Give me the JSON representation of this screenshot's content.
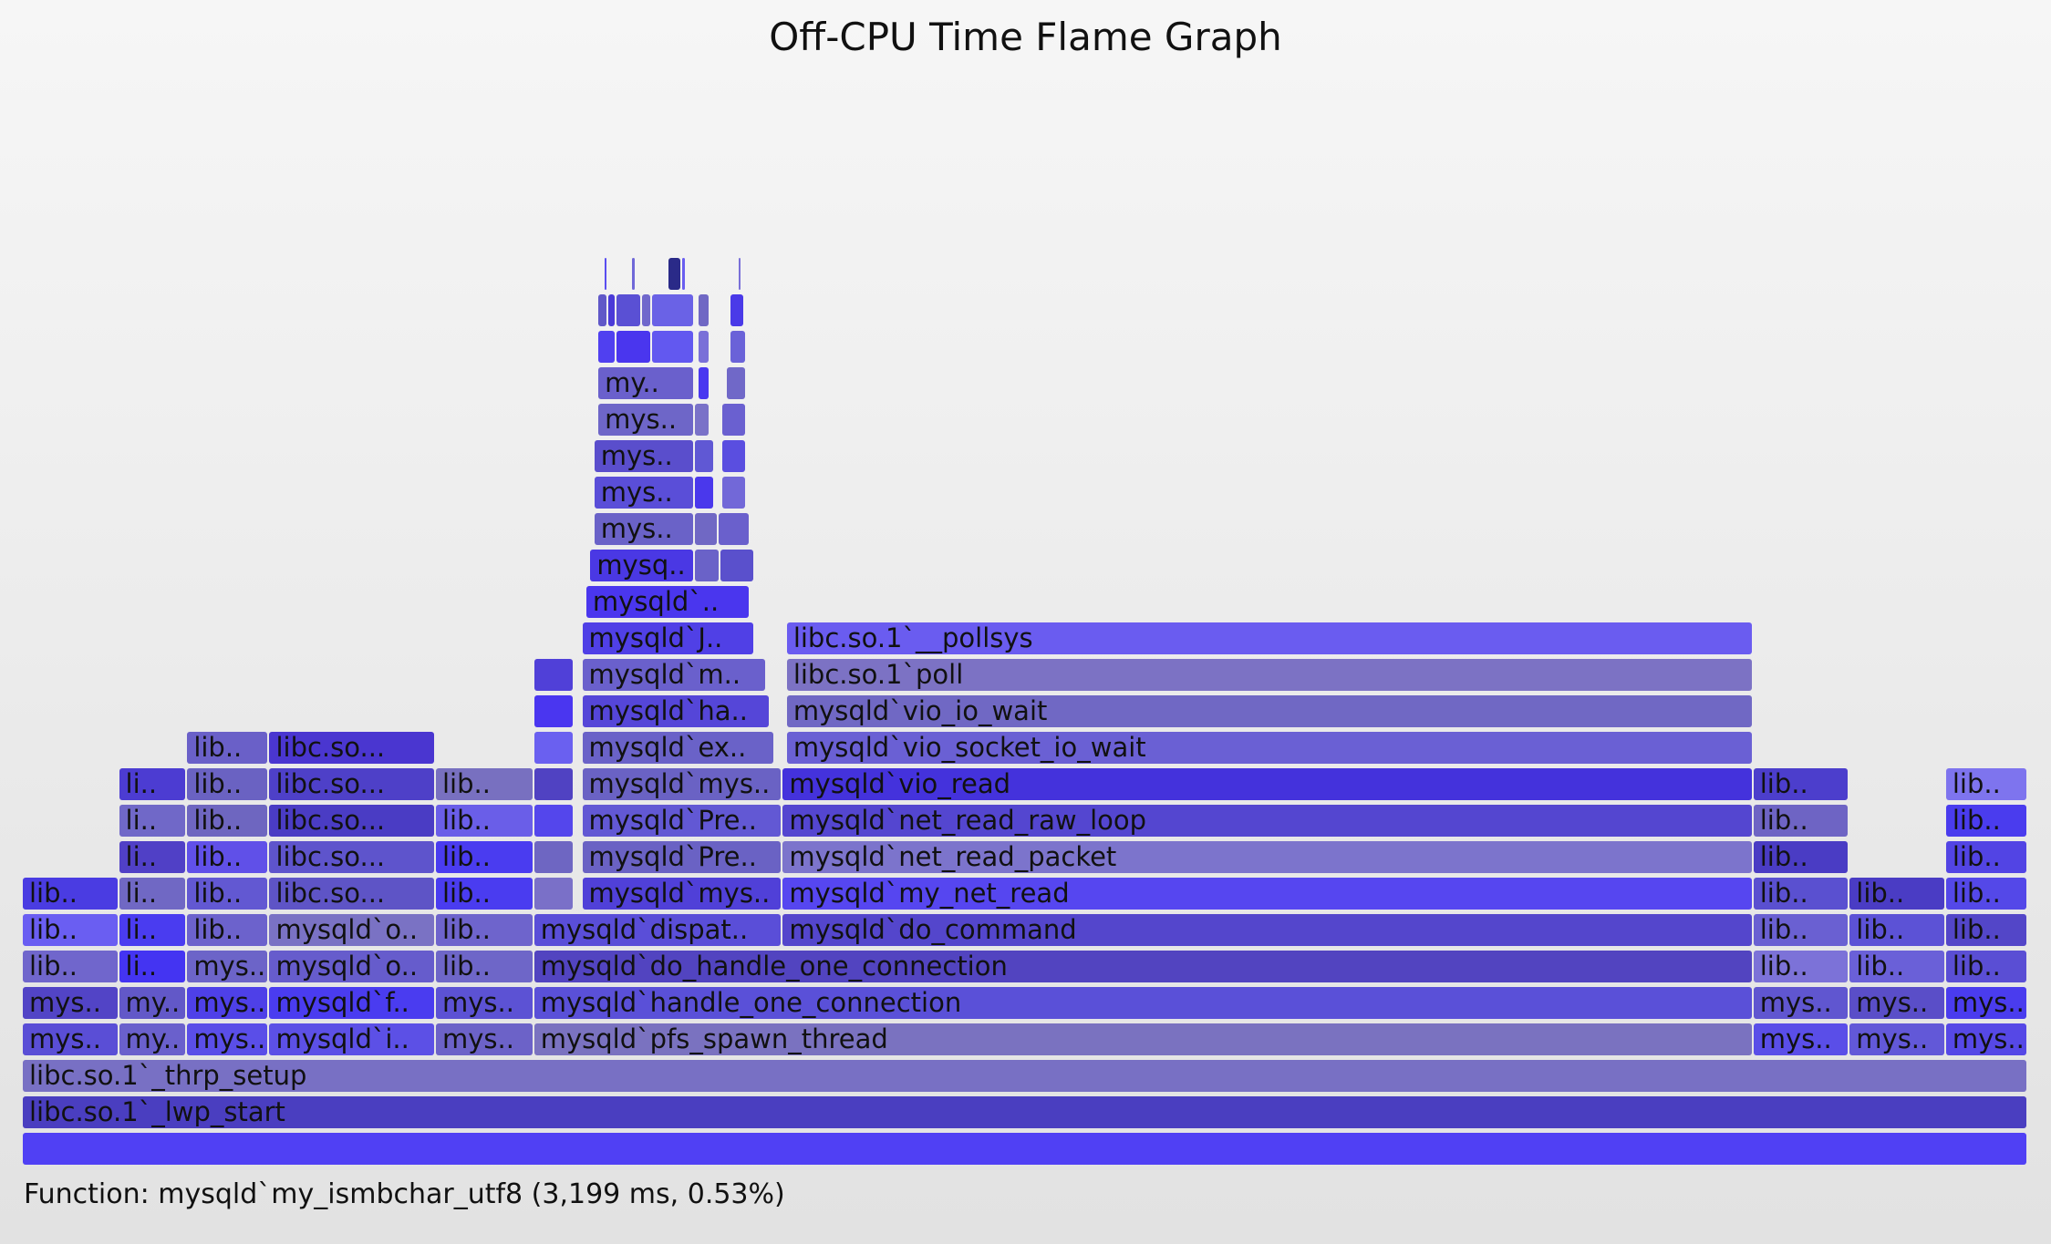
{
  "title": "Off-CPU Time Flame Graph",
  "footer": {
    "prefix": "Function: ",
    "function": "mysqld`my_ismbchar_utf8",
    "detail": " (3,199 ms, 0.53%)"
  },
  "chart_data": {
    "type": "flame",
    "title": "Off-CPU Time Flame Graph",
    "x_unit": "fraction of total off-CPU time",
    "frames": [
      {
        "label": "",
        "depth": 0,
        "x0": 0.0,
        "x1": 1.0,
        "color": "#5040f4"
      },
      {
        "label": "libc.so.1`_lwp_start",
        "depth": 1,
        "x0": 0.0,
        "x1": 1.0,
        "color": "#4a3ec0"
      },
      {
        "label": "libc.so.1`_thrp_setup",
        "depth": 2,
        "x0": 0.0,
        "x1": 1.0,
        "color": "#7870c4"
      },
      {
        "label": "mys..",
        "depth": 3,
        "x0": 0.0,
        "x1": 0.048,
        "color": "#5a4ed6"
      },
      {
        "label": "my..",
        "depth": 3,
        "x0": 0.048,
        "x1": 0.082,
        "color": "#6a60cc"
      },
      {
        "label": "mys..",
        "depth": 3,
        "x0": 0.082,
        "x1": 0.123,
        "color": "#5a4ee8"
      },
      {
        "label": "mysqld`i..",
        "depth": 3,
        "x0": 0.123,
        "x1": 0.206,
        "color": "#5c50e6"
      },
      {
        "label": "mys..",
        "depth": 3,
        "x0": 0.206,
        "x1": 0.255,
        "color": "#6c62c8"
      },
      {
        "label": "mysqld`pfs_spawn_thread",
        "depth": 3,
        "x0": 0.255,
        "x1": 0.863,
        "color": "#7a72c0"
      },
      {
        "label": "mys..",
        "depth": 3,
        "x0": 0.863,
        "x1": 0.911,
        "color": "#5a4ee8"
      },
      {
        "label": "mys..",
        "depth": 3,
        "x0": 0.911,
        "x1": 0.959,
        "color": "#6258d8"
      },
      {
        "label": "mys..",
        "depth": 3,
        "x0": 0.959,
        "x1": 1.0,
        "color": "#5648e6"
      },
      {
        "label": "mys..",
        "depth": 4,
        "x0": 0.0,
        "x1": 0.048,
        "color": "#5244c6"
      },
      {
        "label": "my..",
        "depth": 4,
        "x0": 0.048,
        "x1": 0.082,
        "color": "#6258c8"
      },
      {
        "label": "mys..",
        "depth": 4,
        "x0": 0.082,
        "x1": 0.123,
        "color": "#4e40e8"
      },
      {
        "label": "mysqld`f..",
        "depth": 4,
        "x0": 0.123,
        "x1": 0.206,
        "color": "#4a3cf0"
      },
      {
        "label": "mys..",
        "depth": 4,
        "x0": 0.206,
        "x1": 0.255,
        "color": "#5c52d4"
      },
      {
        "label": "mysqld`handle_one_connection",
        "depth": 4,
        "x0": 0.255,
        "x1": 0.863,
        "color": "#5a50d8"
      },
      {
        "label": "mys..",
        "depth": 4,
        "x0": 0.863,
        "x1": 0.911,
        "color": "#6056d0"
      },
      {
        "label": "mys..",
        "depth": 4,
        "x0": 0.911,
        "x1": 0.959,
        "color": "#5a4ec8"
      },
      {
        "label": "mys..",
        "depth": 4,
        "x0": 0.959,
        "x1": 1.0,
        "color": "#4a3cee"
      },
      {
        "label": "lib..",
        "depth": 5,
        "x0": 0.0,
        "x1": 0.048,
        "color": "#7066cc"
      },
      {
        "label": "li..",
        "depth": 5,
        "x0": 0.048,
        "x1": 0.082,
        "color": "#4434f2"
      },
      {
        "label": "mys..",
        "depth": 5,
        "x0": 0.082,
        "x1": 0.123,
        "color": "#6c64c8"
      },
      {
        "label": "mysqld`o..",
        "depth": 5,
        "x0": 0.123,
        "x1": 0.206,
        "color": "#665ccc"
      },
      {
        "label": "lib..",
        "depth": 5,
        "x0": 0.206,
        "x1": 0.255,
        "color": "#6e66c8"
      },
      {
        "label": "mysqld`do_handle_one_connection",
        "depth": 5,
        "x0": 0.255,
        "x1": 0.863,
        "color": "#5244c0"
      },
      {
        "label": "lib..",
        "depth": 5,
        "x0": 0.863,
        "x1": 0.911,
        "color": "#7c72d8"
      },
      {
        "label": "lib..",
        "depth": 5,
        "x0": 0.911,
        "x1": 0.959,
        "color": "#6a60d8"
      },
      {
        "label": "lib..",
        "depth": 5,
        "x0": 0.959,
        "x1": 1.0,
        "color": "#5a4ed4"
      },
      {
        "label": "lib..",
        "depth": 6,
        "x0": 0.0,
        "x1": 0.048,
        "color": "#6a5ef2"
      },
      {
        "label": "li..",
        "depth": 6,
        "x0": 0.048,
        "x1": 0.082,
        "color": "#4a3cf0"
      },
      {
        "label": "lib..",
        "depth": 6,
        "x0": 0.082,
        "x1": 0.123,
        "color": "#6c62cc"
      },
      {
        "label": "mysqld`o..",
        "depth": 6,
        "x0": 0.123,
        "x1": 0.206,
        "color": "#7a72c4"
      },
      {
        "label": "lib..",
        "depth": 6,
        "x0": 0.206,
        "x1": 0.255,
        "color": "#6e64cc"
      },
      {
        "label": "mysqld`dispat..",
        "depth": 6,
        "x0": 0.255,
        "x1": 0.379,
        "color": "#5a4ed8"
      },
      {
        "label": "mysqld`do_command",
        "depth": 6,
        "x0": 0.379,
        "x1": 0.863,
        "color": "#5446cc"
      },
      {
        "label": "lib..",
        "depth": 6,
        "x0": 0.863,
        "x1": 0.911,
        "color": "#6a60d2"
      },
      {
        "label": "lib..",
        "depth": 6,
        "x0": 0.911,
        "x1": 0.959,
        "color": "#5c52d6"
      },
      {
        "label": "lib..",
        "depth": 6,
        "x0": 0.959,
        "x1": 1.0,
        "color": "#5346c8"
      },
      {
        "label": "lib..",
        "depth": 7,
        "x0": 0.0,
        "x1": 0.048,
        "color": "#4a3ce2"
      },
      {
        "label": "li..",
        "depth": 7,
        "x0": 0.048,
        "x1": 0.082,
        "color": "#7068c4"
      },
      {
        "label": "lib..",
        "depth": 7,
        "x0": 0.082,
        "x1": 0.123,
        "color": "#6258d2"
      },
      {
        "label": "libc.so...",
        "depth": 7,
        "x0": 0.123,
        "x1": 0.206,
        "color": "#5e54c6"
      },
      {
        "label": "lib..",
        "depth": 7,
        "x0": 0.206,
        "x1": 0.255,
        "color": "#4a3cf0"
      },
      {
        "label": "",
        "depth": 7,
        "x0": 0.255,
        "x1": 0.275,
        "color": "#7a70c8"
      },
      {
        "label": "mysqld`mys..",
        "depth": 7,
        "x0": 0.279,
        "x1": 0.379,
        "color": "#5040d8"
      },
      {
        "label": "mysqld`my_net_read",
        "depth": 7,
        "x0": 0.379,
        "x1": 0.863,
        "color": "#5646f0"
      },
      {
        "label": "lib..",
        "depth": 7,
        "x0": 0.863,
        "x1": 0.911,
        "color": "#5a50d0"
      },
      {
        "label": "lib..",
        "depth": 7,
        "x0": 0.911,
        "x1": 0.959,
        "color": "#4a3cc4"
      },
      {
        "label": "lib..",
        "depth": 7,
        "x0": 0.959,
        "x1": 1.0,
        "color": "#5448e8"
      },
      {
        "label": "li..",
        "depth": 8,
        "x0": 0.048,
        "x1": 0.082,
        "color": "#5040c6"
      },
      {
        "label": "lib..",
        "depth": 8,
        "x0": 0.082,
        "x1": 0.123,
        "color": "#6050e8"
      },
      {
        "label": "libc.so...",
        "depth": 8,
        "x0": 0.123,
        "x1": 0.206,
        "color": "#5e54cc"
      },
      {
        "label": "lib..",
        "depth": 8,
        "x0": 0.206,
        "x1": 0.255,
        "color": "#4a3cf0"
      },
      {
        "label": "",
        "depth": 8,
        "x0": 0.255,
        "x1": 0.275,
        "color": "#6e66c2"
      },
      {
        "label": "mysqld`Pre..",
        "depth": 8,
        "x0": 0.279,
        "x1": 0.379,
        "color": "#6a62c4"
      },
      {
        "label": "mysqld`net_read_packet",
        "depth": 8,
        "x0": 0.379,
        "x1": 0.863,
        "color": "#7c74cc"
      },
      {
        "label": "lib..",
        "depth": 8,
        "x0": 0.863,
        "x1": 0.911,
        "color": "#4a3cc4"
      },
      {
        "label": "lib..",
        "depth": 8,
        "x0": 0.959,
        "x1": 1.0,
        "color": "#5244e4"
      },
      {
        "label": "li..",
        "depth": 9,
        "x0": 0.048,
        "x1": 0.082,
        "color": "#7068c8"
      },
      {
        "label": "lib..",
        "depth": 9,
        "x0": 0.082,
        "x1": 0.123,
        "color": "#6e66c0"
      },
      {
        "label": "libc.so...",
        "depth": 9,
        "x0": 0.123,
        "x1": 0.206,
        "color": "#4a3cc4"
      },
      {
        "label": "lib..",
        "depth": 9,
        "x0": 0.206,
        "x1": 0.255,
        "color": "#6a5ee8"
      },
      {
        "label": "",
        "depth": 9,
        "x0": 0.255,
        "x1": 0.275,
        "color": "#5446ec"
      },
      {
        "label": "mysqld`Pre..",
        "depth": 9,
        "x0": 0.279,
        "x1": 0.379,
        "color": "#6258d4"
      },
      {
        "label": "mysqld`net_read_raw_loop",
        "depth": 9,
        "x0": 0.379,
        "x1": 0.863,
        "color": "#5446d0"
      },
      {
        "label": "lib..",
        "depth": 9,
        "x0": 0.863,
        "x1": 0.911,
        "color": "#6e64c4"
      },
      {
        "label": "lib..",
        "depth": 9,
        "x0": 0.959,
        "x1": 1.0,
        "color": "#4a3cee"
      },
      {
        "label": "li..",
        "depth": 10,
        "x0": 0.048,
        "x1": 0.082,
        "color": "#4c3cd2"
      },
      {
        "label": "lib..",
        "depth": 10,
        "x0": 0.082,
        "x1": 0.123,
        "color": "#6a62c2"
      },
      {
        "label": "libc.so...",
        "depth": 10,
        "x0": 0.123,
        "x1": 0.206,
        "color": "#4e40c8"
      },
      {
        "label": "lib..",
        "depth": 10,
        "x0": 0.206,
        "x1": 0.255,
        "color": "#7870c0"
      },
      {
        "label": "",
        "depth": 10,
        "x0": 0.255,
        "x1": 0.275,
        "color": "#5042c2"
      },
      {
        "label": "mysqld`mys..",
        "depth": 10,
        "x0": 0.279,
        "x1": 0.379,
        "color": "#6a62c4"
      },
      {
        "label": "mysqld`vio_read",
        "depth": 10,
        "x0": 0.379,
        "x1": 0.863,
        "color": "#4432dc"
      },
      {
        "label": "lib..",
        "depth": 10,
        "x0": 0.863,
        "x1": 0.911,
        "color": "#4c3ecc"
      },
      {
        "label": "lib..",
        "depth": 10,
        "x0": 0.959,
        "x1": 1.0,
        "color": "#7e74ee"
      },
      {
        "label": "lib..",
        "depth": 11,
        "x0": 0.082,
        "x1": 0.123,
        "color": "#6a60c8"
      },
      {
        "label": "libc.so...",
        "depth": 11,
        "x0": 0.123,
        "x1": 0.206,
        "color": "#4a36d0"
      },
      {
        "label": "",
        "depth": 11,
        "x0": 0.255,
        "x1": 0.275,
        "color": "#6a60f0"
      },
      {
        "label": "mysqld`ex..",
        "depth": 11,
        "x0": 0.279,
        "x1": 0.375,
        "color": "#6a62c8"
      },
      {
        "label": "mysqld`vio_socket_io_wait",
        "depth": 11,
        "x0": 0.381,
        "x1": 0.863,
        "color": "#6a60d4"
      },
      {
        "label": "",
        "depth": 12,
        "x0": 0.255,
        "x1": 0.275,
        "color": "#4a36f0"
      },
      {
        "label": "mysqld`ha..",
        "depth": 12,
        "x0": 0.279,
        "x1": 0.373,
        "color": "#5546d8"
      },
      {
        "label": "mysqld`vio_io_wait",
        "depth": 12,
        "x0": 0.381,
        "x1": 0.863,
        "color": "#7068c4"
      },
      {
        "label": "",
        "depth": 13,
        "x0": 0.255,
        "x1": 0.275,
        "color": "#5040d8"
      },
      {
        "label": "mysqld`m..",
        "depth": 13,
        "x0": 0.279,
        "x1": 0.371,
        "color": "#6a60cc"
      },
      {
        "label": "libc.so.1`poll",
        "depth": 13,
        "x0": 0.381,
        "x1": 0.863,
        "color": "#7c72c4"
      },
      {
        "label": "mysqld`J..",
        "depth": 14,
        "x0": 0.279,
        "x1": 0.365,
        "color": "#5040e6"
      },
      {
        "label": "libc.so.1`__pollsys",
        "depth": 14,
        "x0": 0.381,
        "x1": 0.863,
        "color": "#6a5cf0"
      },
      {
        "label": "mysqld`..",
        "depth": 15,
        "x0": 0.281,
        "x1": 0.363,
        "color": "#4a36ee"
      },
      {
        "label": "mysq..",
        "depth": 16,
        "x0": 0.283,
        "x1": 0.335,
        "color": "#4a38e4"
      },
      {
        "label": "",
        "depth": 16,
        "x0": 0.335,
        "x1": 0.348,
        "color": "#6a62c8"
      },
      {
        "label": "",
        "depth": 16,
        "x0": 0.348,
        "x1": 0.365,
        "color": "#5a50cc"
      },
      {
        "label": "mys..",
        "depth": 17,
        "x0": 0.285,
        "x1": 0.335,
        "color": "#6a62c8"
      },
      {
        "label": "",
        "depth": 17,
        "x0": 0.335,
        "x1": 0.347,
        "color": "#7068c4"
      },
      {
        "label": "",
        "depth": 17,
        "x0": 0.347,
        "x1": 0.363,
        "color": "#6a60cc"
      },
      {
        "label": "mys..",
        "depth": 18,
        "x0": 0.285,
        "x1": 0.335,
        "color": "#5a4ed8"
      },
      {
        "label": "",
        "depth": 18,
        "x0": 0.335,
        "x1": 0.345,
        "color": "#4a38ec"
      },
      {
        "label": "",
        "depth": 18,
        "x0": 0.349,
        "x1": 0.361,
        "color": "#7268d8"
      },
      {
        "label": "mys..",
        "depth": 19,
        "x0": 0.285,
        "x1": 0.335,
        "color": "#5a4ecc"
      },
      {
        "label": "",
        "depth": 19,
        "x0": 0.335,
        "x1": 0.345,
        "color": "#6058d4"
      },
      {
        "label": "",
        "depth": 19,
        "x0": 0.349,
        "x1": 0.361,
        "color": "#5a4ee0"
      },
      {
        "label": "mys..",
        "depth": 20,
        "x0": 0.287,
        "x1": 0.335,
        "color": "#6e66c8"
      },
      {
        "label": "",
        "depth": 20,
        "x0": 0.335,
        "x1": 0.343,
        "color": "#7a72c8"
      },
      {
        "label": "",
        "depth": 20,
        "x0": 0.349,
        "x1": 0.361,
        "color": "#6a60d0"
      },
      {
        "label": "my..",
        "depth": 21,
        "x0": 0.287,
        "x1": 0.335,
        "color": "#6a60cc"
      },
      {
        "label": "",
        "depth": 21,
        "x0": 0.337,
        "x1": 0.343,
        "color": "#4a38f0"
      },
      {
        "label": "",
        "depth": 21,
        "x0": 0.351,
        "x1": 0.361,
        "color": "#7068c8"
      },
      {
        "label": "",
        "depth": 22,
        "x0": 0.287,
        "x1": 0.296,
        "color": "#5040f0"
      },
      {
        "label": "",
        "depth": 22,
        "x0": 0.296,
        "x1": 0.314,
        "color": "#4a36ee"
      },
      {
        "label": "",
        "depth": 22,
        "x0": 0.314,
        "x1": 0.335,
        "color": "#6258f0"
      },
      {
        "label": "",
        "depth": 22,
        "x0": 0.337,
        "x1": 0.343,
        "color": "#7a70d8"
      },
      {
        "label": "",
        "depth": 22,
        "x0": 0.353,
        "x1": 0.361,
        "color": "#6a62d8"
      },
      {
        "label": "",
        "depth": 23,
        "x0": 0.287,
        "x1": 0.292,
        "color": "#6058c8"
      },
      {
        "label": "",
        "depth": 23,
        "x0": 0.292,
        "x1": 0.296,
        "color": "#4a3ad8"
      },
      {
        "label": "",
        "depth": 23,
        "x0": 0.296,
        "x1": 0.309,
        "color": "#5a50d4"
      },
      {
        "label": "",
        "depth": 23,
        "x0": 0.309,
        "x1": 0.314,
        "color": "#7068cc"
      },
      {
        "label": "",
        "depth": 23,
        "x0": 0.314,
        "x1": 0.335,
        "color": "#6a62e6"
      },
      {
        "label": "",
        "depth": 23,
        "x0": 0.337,
        "x1": 0.343,
        "color": "#7068c4"
      },
      {
        "label": "",
        "depth": 23,
        "x0": 0.353,
        "x1": 0.36,
        "color": "#4a3ae8"
      },
      {
        "label": "",
        "depth": 24,
        "x0": 0.29,
        "x1": 0.292,
        "color": "#5a4ef0"
      },
      {
        "label": "",
        "depth": 24,
        "x0": 0.304,
        "x1": 0.306,
        "color": "#7068d8"
      },
      {
        "label": "",
        "depth": 24,
        "x0": 0.322,
        "x1": 0.329,
        "color": "#2a2a88"
      },
      {
        "label": "",
        "depth": 24,
        "x0": 0.329,
        "x1": 0.331,
        "color": "#6a5ef0"
      },
      {
        "label": "",
        "depth": 24,
        "x0": 0.357,
        "x1": 0.359,
        "color": "#7a70d8"
      }
    ]
  }
}
